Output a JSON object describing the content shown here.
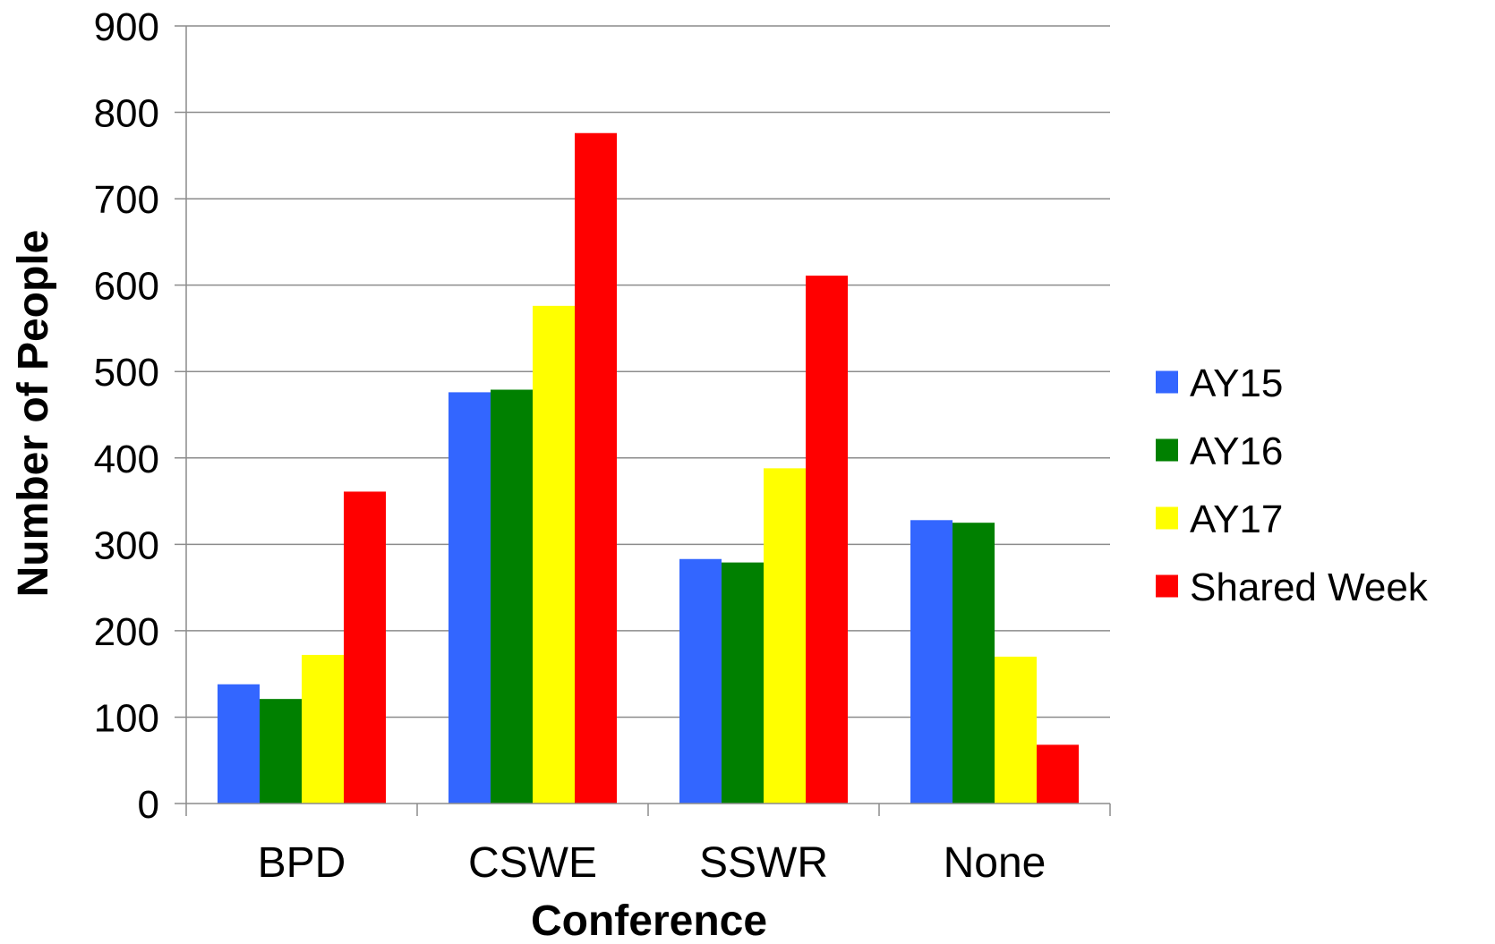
{
  "chart_data": {
    "type": "bar",
    "title": "",
    "xlabel": "Conference",
    "ylabel": "Number of People",
    "ylim": [
      0,
      900
    ],
    "ytick_step": 100,
    "grid": true,
    "legend_position": "right",
    "categories": [
      "BPD",
      "CSWE",
      "SSWR",
      "None"
    ],
    "series": [
      {
        "name": "AY15",
        "color": "#3366FF",
        "values": [
          138,
          476,
          283,
          328
        ]
      },
      {
        "name": "AY16",
        "color": "#008000",
        "values": [
          121,
          479,
          279,
          325
        ]
      },
      {
        "name": "AY17",
        "color": "#FFFF00",
        "values": [
          172,
          576,
          388,
          170
        ]
      },
      {
        "name": "Shared Week",
        "color": "#FF0000",
        "values": [
          361,
          776,
          611,
          68
        ]
      }
    ]
  }
}
